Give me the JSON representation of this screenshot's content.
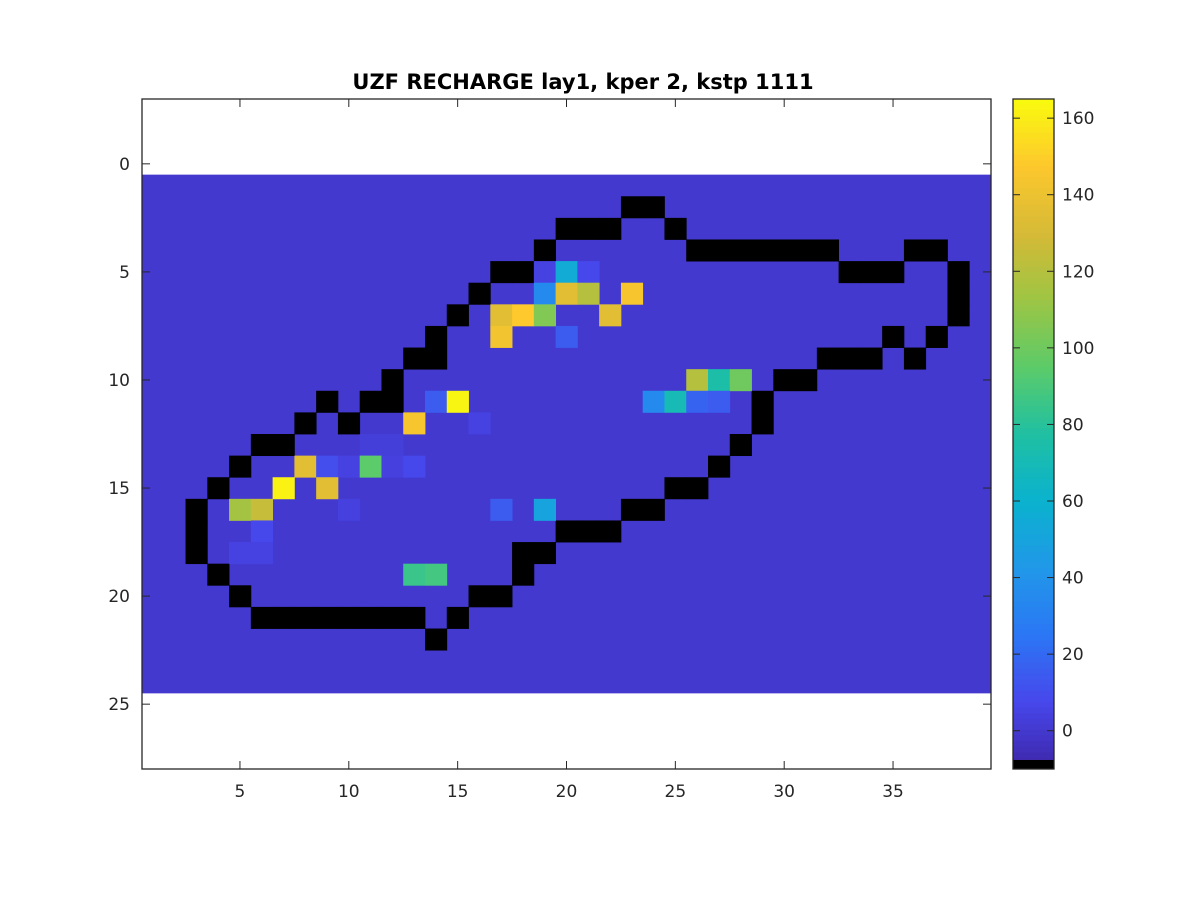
{
  "chart_data": {
    "type": "heatmap",
    "title": "UZF RECHARGE lay1, kper 2, kstp 1111",
    "xlabel": "",
    "ylabel": "",
    "colormap": "parula",
    "xlim": [
      0.5,
      39.5
    ],
    "ylim": [
      28,
      -3
    ],
    "x_ticks": [
      5,
      10,
      15,
      20,
      25,
      30,
      35
    ],
    "y_ticks": [
      0,
      5,
      10,
      15,
      20,
      25
    ],
    "grid": false,
    "colorbar": {
      "position": "right",
      "clim": [
        -10,
        165
      ],
      "ticks": [
        0,
        20,
        40,
        60,
        80,
        100,
        120,
        140,
        160
      ],
      "missing_color": "#000000"
    },
    "grid_extent": {
      "cols": [
        1,
        39
      ],
      "rows": [
        1,
        24
      ]
    },
    "background_value": 0,
    "cells": [
      [
        2,
        23,
        -10
      ],
      [
        2,
        24,
        -10
      ],
      [
        3,
        20,
        -10
      ],
      [
        3,
        21,
        -10
      ],
      [
        3,
        22,
        -10
      ],
      [
        3,
        25,
        -10
      ],
      [
        4,
        19,
        -10
      ],
      [
        4,
        26,
        -10
      ],
      [
        4,
        27,
        -10
      ],
      [
        4,
        28,
        -10
      ],
      [
        4,
        29,
        -10
      ],
      [
        4,
        30,
        -10
      ],
      [
        4,
        31,
        -10
      ],
      [
        4,
        32,
        -10
      ],
      [
        4,
        36,
        -10
      ],
      [
        4,
        37,
        -10
      ],
      [
        5,
        17,
        -10
      ],
      [
        5,
        18,
        -10
      ],
      [
        5,
        33,
        -10
      ],
      [
        5,
        34,
        -10
      ],
      [
        5,
        35,
        -10
      ],
      [
        5,
        38,
        -10
      ],
      [
        6,
        16,
        -10
      ],
      [
        6,
        38,
        -10
      ],
      [
        7,
        15,
        -10
      ],
      [
        7,
        38,
        -10
      ],
      [
        8,
        14,
        -10
      ],
      [
        8,
        35,
        -10
      ],
      [
        8,
        37,
        -10
      ],
      [
        9,
        13,
        -10
      ],
      [
        9,
        14,
        -10
      ],
      [
        9,
        32,
        -10
      ],
      [
        9,
        33,
        -10
      ],
      [
        9,
        34,
        -10
      ],
      [
        9,
        36,
        -10
      ],
      [
        10,
        12,
        -10
      ],
      [
        10,
        30,
        -10
      ],
      [
        10,
        31,
        -10
      ],
      [
        11,
        9,
        -10
      ],
      [
        11,
        11,
        -10
      ],
      [
        11,
        12,
        -10
      ],
      [
        11,
        29,
        -10
      ],
      [
        12,
        8,
        -10
      ],
      [
        12,
        10,
        -10
      ],
      [
        12,
        29,
        -10
      ],
      [
        13,
        6,
        -10
      ],
      [
        13,
        7,
        -10
      ],
      [
        13,
        28,
        -10
      ],
      [
        14,
        5,
        -10
      ],
      [
        14,
        27,
        -10
      ],
      [
        15,
        4,
        -10
      ],
      [
        15,
        25,
        -10
      ],
      [
        15,
        26,
        -10
      ],
      [
        16,
        3,
        -10
      ],
      [
        16,
        23,
        -10
      ],
      [
        16,
        24,
        -10
      ],
      [
        17,
        3,
        -10
      ],
      [
        17,
        20,
        -10
      ],
      [
        17,
        21,
        -10
      ],
      [
        17,
        22,
        -10
      ],
      [
        18,
        3,
        -10
      ],
      [
        18,
        18,
        -10
      ],
      [
        18,
        19,
        -10
      ],
      [
        19,
        4,
        -10
      ],
      [
        19,
        18,
        -10
      ],
      [
        20,
        5,
        -10
      ],
      [
        20,
        16,
        -10
      ],
      [
        20,
        17,
        -10
      ],
      [
        21,
        6,
        -10
      ],
      [
        21,
        7,
        -10
      ],
      [
        21,
        8,
        -10
      ],
      [
        21,
        9,
        -10
      ],
      [
        21,
        10,
        -10
      ],
      [
        21,
        11,
        -10
      ],
      [
        21,
        12,
        -10
      ],
      [
        21,
        13,
        -10
      ],
      [
        21,
        15,
        -10
      ],
      [
        22,
        14,
        -10
      ],
      [
        5,
        19,
        5
      ],
      [
        5,
        20,
        55
      ],
      [
        5,
        21,
        8
      ],
      [
        6,
        19,
        35
      ],
      [
        6,
        20,
        135
      ],
      [
        6,
        21,
        120
      ],
      [
        6,
        23,
        145
      ],
      [
        7,
        17,
        135
      ],
      [
        7,
        18,
        148
      ],
      [
        7,
        19,
        105
      ],
      [
        7,
        22,
        135
      ],
      [
        8,
        17,
        142
      ],
      [
        8,
        20,
        15
      ],
      [
        10,
        26,
        120
      ],
      [
        10,
        27,
        75
      ],
      [
        10,
        28,
        100
      ],
      [
        11,
        14,
        15
      ],
      [
        11,
        15,
        163
      ],
      [
        11,
        24,
        35
      ],
      [
        11,
        25,
        70
      ],
      [
        11,
        26,
        18
      ],
      [
        11,
        27,
        15
      ],
      [
        12,
        13,
        145
      ],
      [
        12,
        16,
        5
      ],
      [
        13,
        11,
        3
      ],
      [
        13,
        12,
        3
      ],
      [
        14,
        8,
        135
      ],
      [
        14,
        9,
        10
      ],
      [
        14,
        10,
        5
      ],
      [
        14,
        11,
        95
      ],
      [
        14,
        12,
        4
      ],
      [
        14,
        13,
        8
      ],
      [
        15,
        7,
        162
      ],
      [
        15,
        9,
        135
      ],
      [
        16,
        5,
        115
      ],
      [
        16,
        6,
        125
      ],
      [
        16,
        10,
        4
      ],
      [
        16,
        17,
        15
      ],
      [
        16,
        19,
        50
      ],
      [
        17,
        6,
        8
      ],
      [
        18,
        5,
        5
      ],
      [
        18,
        6,
        5
      ],
      [
        19,
        13,
        85
      ],
      [
        19,
        14,
        88
      ]
    ]
  }
}
